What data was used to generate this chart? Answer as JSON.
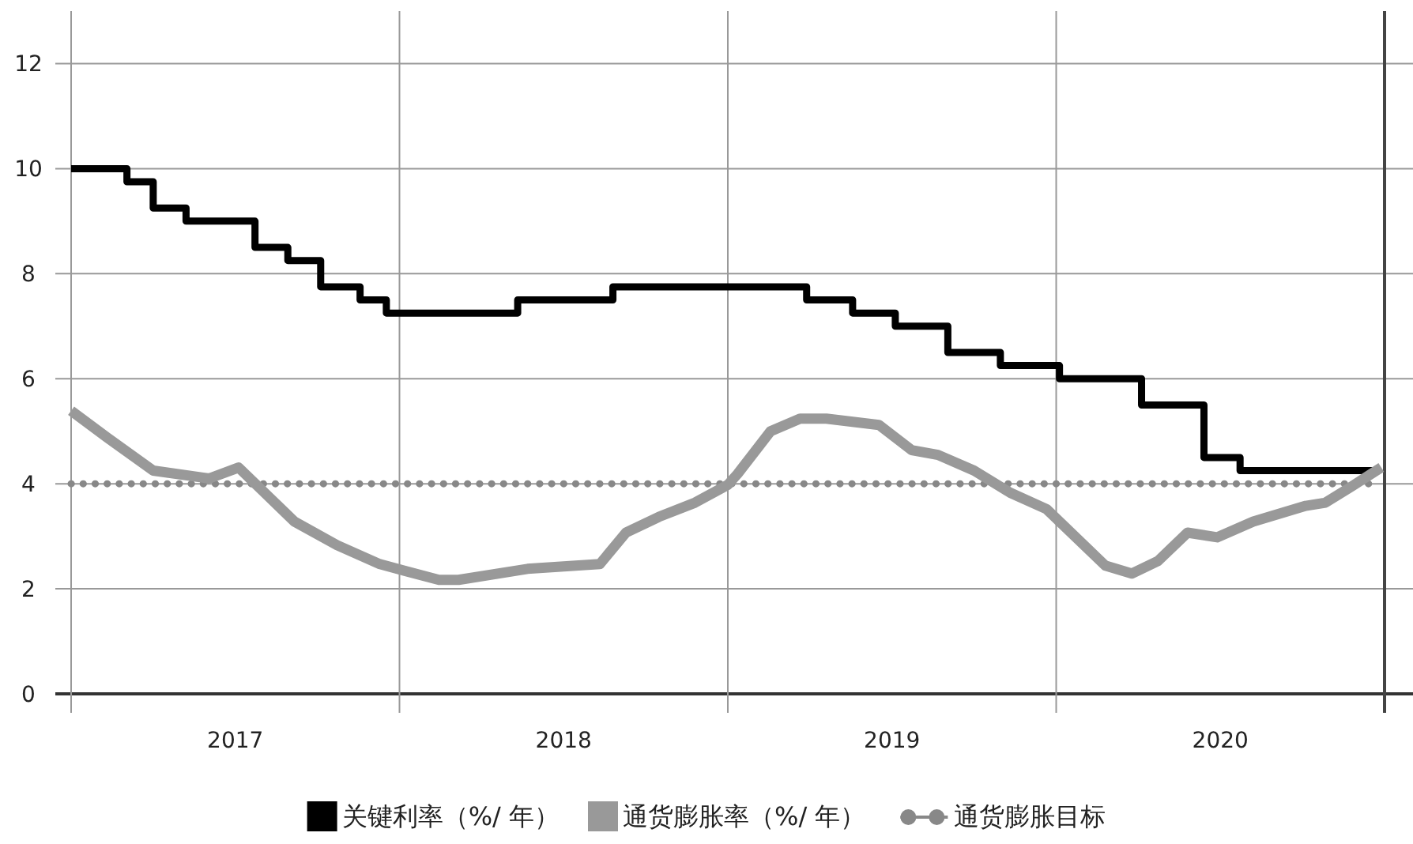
{
  "chart_data": {
    "type": "line",
    "xlim": [
      2017,
      2021
    ],
    "ylim": [
      0,
      13
    ],
    "xticks": [
      {
        "value": 2017,
        "label": null
      },
      {
        "value": 2017.5,
        "label": "2017"
      },
      {
        "value": 2018,
        "label": null
      },
      {
        "value": 2018.5,
        "label": "2018"
      },
      {
        "value": 2019,
        "label": null
      },
      {
        "value": 2019.5,
        "label": "2019"
      },
      {
        "value": 2020,
        "label": null
      },
      {
        "value": 2020.5,
        "label": "2020"
      },
      {
        "value": 2021,
        "label": null
      }
    ],
    "yticks": [
      0,
      2,
      4,
      6,
      8,
      10,
      12
    ],
    "grid": true,
    "legend": "bottom",
    "series": [
      {
        "name": "关键利率（%/ 年）",
        "type": "step",
        "color": "#000000",
        "x": [
          2017.0,
          2017.17,
          2017.25,
          2017.35,
          2017.56,
          2017.66,
          2017.76,
          2017.88,
          2017.96,
          2018.36,
          2018.65,
          2019.24,
          2019.38,
          2019.51,
          2019.67,
          2019.83,
          2020.01,
          2020.26,
          2020.45,
          2020.56,
          2020.97
        ],
        "values": [
          10,
          9.75,
          9.25,
          9.0,
          8.5,
          8.25,
          7.75,
          7.5,
          7.25,
          7.5,
          7.75,
          7.5,
          7.25,
          7.0,
          6.5,
          6.25,
          6.0,
          5.5,
          4.5,
          4.25,
          4.25
        ]
      },
      {
        "name": "通货膨胀率（%/ 年）",
        "type": "line",
        "color": "#999999",
        "x": [
          2017.0,
          2017.11,
          2017.25,
          2017.42,
          2017.51,
          2017.68,
          2017.81,
          2017.94,
          2018.12,
          2018.18,
          2018.39,
          2018.61,
          2018.69,
          2018.79,
          2018.9,
          2019.0,
          2019.03,
          2019.13,
          2019.22,
          2019.3,
          2019.46,
          2019.56,
          2019.64,
          2019.75,
          2019.86,
          2019.97,
          2020.15,
          2020.23,
          2020.31,
          2020.4,
          2020.49,
          2020.6,
          2020.76,
          2020.82,
          2020.9,
          2020.99
        ],
        "values": [
          5.39,
          4.88,
          4.25,
          4.1,
          4.31,
          3.28,
          2.83,
          2.47,
          2.17,
          2.17,
          2.38,
          2.47,
          3.07,
          3.37,
          3.64,
          3.98,
          4.19,
          5.0,
          5.24,
          5.24,
          5.12,
          4.64,
          4.55,
          4.25,
          3.83,
          3.52,
          2.44,
          2.29,
          2.53,
          3.07,
          2.98,
          3.28,
          3.58,
          3.64,
          3.95,
          4.31
        ]
      }
    ],
    "ref_lines": [
      {
        "axis": "y",
        "value": 4,
        "label": "通货膨胀目标",
        "color": "#888888",
        "line_style": "dotted"
      }
    ]
  }
}
